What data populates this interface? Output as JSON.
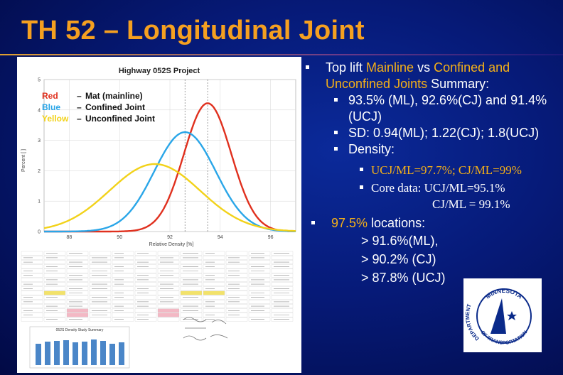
{
  "title": "TH 52 – Longitudinal Joint",
  "figure": {
    "sheet_caption": "052S Density Study Summary",
    "chart_data": {
      "type": "line",
      "title": "Highway 052S Project",
      "xlabel": "Relative Density [%]",
      "ylabel": "Percent [ ]",
      "xlim": [
        87,
        97
      ],
      "ylim": [
        0,
        5
      ],
      "x_ticks": [
        "88",
        "90",
        "92",
        "94",
        "96"
      ],
      "y_ticks": [
        "0",
        "1",
        "2",
        "3",
        "4",
        "5"
      ],
      "grid": true,
      "legend": [
        {
          "color_word": "Red",
          "dash": "–",
          "label": "Mat (mainline)",
          "color": "#e0301e"
        },
        {
          "color_word": "Blue",
          "dash": "–",
          "label": "Confined Joint",
          "color": "#2aa6e8"
        },
        {
          "color_word": "Yellow",
          "dash": "–",
          "label": "Unconfined Joint",
          "color": "#f2d21a"
        }
      ],
      "series": [
        {
          "name": "Mat (mainline)",
          "color": "#e0301e",
          "mean": 93.5,
          "sd": 0.94,
          "peak": 4.22
        },
        {
          "name": "Confined Joint",
          "color": "#2aa6e8",
          "mean": 92.6,
          "sd": 1.22,
          "peak": 3.27
        },
        {
          "name": "Unconfined Joint",
          "color": "#f2d21a",
          "mean": 91.4,
          "sd": 1.8,
          "peak": 2.22
        }
      ],
      "reference_lines": [
        92.6,
        93.5
      ]
    }
  },
  "bullets": {
    "summary_parts": [
      {
        "text": "Top lift ",
        "highlight": false
      },
      {
        "text": "Mainline",
        "highlight": true
      },
      {
        "text": " vs ",
        "highlight": false
      },
      {
        "text": "Confined and Unconfined Joints",
        "highlight": true
      },
      {
        "text": " Summary:",
        "highlight": false
      }
    ],
    "means": "93.5% (ML), 92.6%(CJ) and 91.4%(UCJ)",
    "sd": "SD: 0.94(ML); 1.22(CJ); 1.8(UCJ)",
    "density_label": "Density:",
    "density_ratio": "UCJ/ML=97.7%; CJ/ML=99%",
    "core_data": "Core data: UCJ/ML=95.1%",
    "core_data_cont": "CJ/ML = 99.1%",
    "locations_pct": "97.5%",
    "locations_label": " locations:",
    "loc_ml": "> 91.6%(ML),",
    "loc_cj": "> 90.2% (CJ)",
    "loc_ucj": "> 87.8% (UCJ)"
  },
  "logo": {
    "top_text": "MINNESOTA",
    "side_text": "DEPARTMENT",
    "bottom_text": "OF TRANSPORTATION"
  }
}
